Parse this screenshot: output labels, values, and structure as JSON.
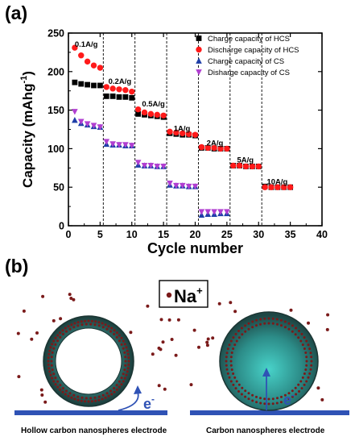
{
  "panel_a_label": "(a)",
  "panel_b_label": "(b)",
  "chart_data": {
    "type": "scatter",
    "xlabel": "Cycle number",
    "ylabel": "Capacity (mAhg",
    "ylabel_sup": "-1",
    "ylabel_close": ")",
    "xlim": [
      0,
      40
    ],
    "ylim": [
      0,
      250
    ],
    "xticks": [
      0,
      5,
      10,
      15,
      20,
      25,
      30,
      35,
      40
    ],
    "yticks": [
      0,
      50,
      100,
      150,
      200,
      250
    ],
    "grid": false,
    "legend_position": "top-right",
    "rate_dividers": [
      5.5,
      10.5,
      15.5,
      20.5,
      25.5,
      30.5
    ],
    "annotations": [
      {
        "text": "0.1A/g",
        "x": 1.0,
        "y": 232
      },
      {
        "text": "0.2A/g",
        "x": 6.3,
        "y": 184
      },
      {
        "text": "0.5A/g",
        "x": 11.6,
        "y": 155
      },
      {
        "text": "1A/g",
        "x": 16.6,
        "y": 123
      },
      {
        "text": "2A/g",
        "x": 21.8,
        "y": 104
      },
      {
        "text": "5A/g",
        "x": 26.6,
        "y": 82
      },
      {
        "text": "10A/g",
        "x": 31.3,
        "y": 54
      }
    ],
    "series": [
      {
        "name": "Charge capacity of HCS",
        "marker": "square",
        "color": "#000000",
        "x": [
          1,
          2,
          3,
          4,
          5,
          6,
          7,
          8,
          9,
          10,
          11,
          12,
          13,
          14,
          15,
          16,
          17,
          18,
          19,
          20,
          21,
          22,
          23,
          24,
          25,
          26,
          27,
          28,
          29,
          30,
          31,
          32,
          33,
          34,
          35
        ],
        "y": [
          186,
          184,
          183,
          182,
          182,
          168,
          168,
          167,
          167,
          166,
          145,
          144,
          143,
          142,
          141,
          120,
          119,
          118,
          118,
          117,
          101,
          101,
          100,
          100,
          100,
          78,
          78,
          77,
          77,
          77,
          51,
          50,
          50,
          50,
          50
        ]
      },
      {
        "name": "Discharge capacity of HCS",
        "marker": "circle",
        "color": "#ff1a1a",
        "x": [
          1,
          2,
          3,
          4,
          5,
          6,
          7,
          8,
          9,
          10,
          11,
          12,
          13,
          14,
          15,
          16,
          17,
          18,
          19,
          20,
          21,
          22,
          23,
          24,
          25,
          26,
          27,
          28,
          29,
          30,
          31,
          32,
          33,
          34,
          35
        ],
        "y": [
          231,
          221,
          213,
          208,
          205,
          180,
          178,
          177,
          176,
          174,
          151,
          147,
          145,
          144,
          143,
          122,
          121,
          120,
          119,
          118,
          102,
          101,
          101,
          100,
          100,
          78,
          78,
          77,
          77,
          77,
          50,
          50,
          50,
          50,
          50
        ]
      },
      {
        "name": "Charge capacity of CS",
        "marker": "triangle-up",
        "color": "#1f3fa8",
        "x": [
          1,
          2,
          3,
          4,
          5,
          6,
          7,
          8,
          9,
          10,
          11,
          12,
          13,
          14,
          15,
          16,
          17,
          18,
          19,
          20,
          21,
          22,
          23,
          24,
          25
        ],
        "y": [
          137,
          133,
          131,
          129,
          128,
          106,
          105,
          105,
          104,
          104,
          79,
          78,
          78,
          77,
          77,
          53,
          52,
          52,
          51,
          51,
          14,
          15,
          15,
          16,
          16
        ]
      },
      {
        "name": "Disharge capacity of CS",
        "marker": "triangle-down",
        "color": "#b13fd1",
        "x": [
          1,
          2,
          3,
          4,
          5,
          6,
          7,
          8,
          9,
          10,
          11,
          12,
          13,
          14,
          15,
          16,
          17,
          18,
          19,
          20,
          21,
          22,
          23,
          24,
          25
        ],
        "y": [
          148,
          135,
          132,
          130,
          128,
          109,
          106,
          105,
          105,
          104,
          82,
          78,
          78,
          77,
          77,
          55,
          52,
          52,
          51,
          51,
          18,
          18,
          18,
          18,
          18
        ]
      }
    ]
  },
  "schematic": {
    "ion_label": "Na",
    "ion_charge": "+",
    "electron_label": "e",
    "electron_charge": "-",
    "left_caption": "Hollow carbon nanospheres electrode",
    "right_caption": "Carbon nanospheres electrode",
    "colors": {
      "shell": "#1e3a38",
      "core": "#3fb8b2",
      "substrate": "#2f52b5",
      "dot": "#7a1a1a"
    }
  }
}
